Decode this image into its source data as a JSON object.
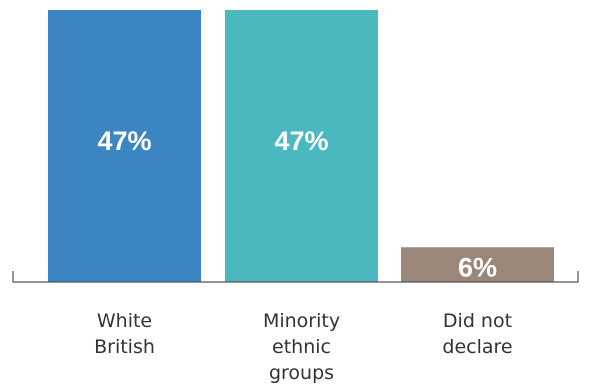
{
  "chart_data": {
    "type": "bar",
    "categories": [
      "White British",
      "Minority ethnic groups",
      "Did not declare"
    ],
    "category_lines": [
      [
        "White",
        "British"
      ],
      [
        "Minority",
        "ethnic",
        "groups"
      ],
      [
        "Did not",
        "declare"
      ]
    ],
    "values": [
      47,
      47,
      6
    ],
    "data_labels": [
      "47%",
      "47%",
      "6%"
    ],
    "ylim": [
      0,
      47
    ],
    "grid": false,
    "legend": "none",
    "bar_colors": [
      "#3a85c2",
      "#4bb8c0",
      "#9a877a"
    ],
    "label_color": "#ffffff",
    "axis_color": "#555555",
    "title": "",
    "xlabel": "",
    "ylabel": ""
  }
}
